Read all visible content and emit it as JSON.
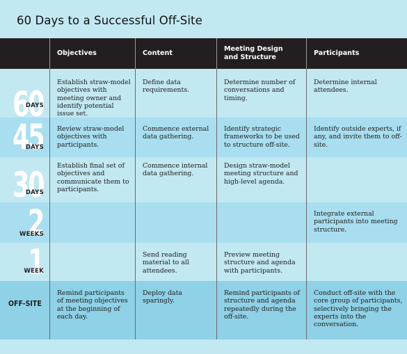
{
  "title": "60 Days to a Successful Off-Site",
  "colors": {
    "header_bg": "#231f20",
    "row_a": "#c2e8f2",
    "row_b": "#a9def0",
    "row_offsite": "#8fd1e6",
    "numeral": "#ffffff"
  },
  "columns": [
    "Objectives",
    "Content",
    "Meeting Design\nand Structure",
    "Participants"
  ],
  "rows": [
    {
      "number": "60",
      "unit": "DAYS",
      "cells": [
        "Establish straw-model objectives with meeting owner and identify potential issue set.",
        "Define data requirements.",
        "Determine number of conversations and timing.",
        "Determine internal attendees."
      ]
    },
    {
      "number": "45",
      "unit": "DAYS",
      "cells": [
        "Review straw-model objectives with participants.",
        "Commence external data gathering.",
        "Identify strategic frameworks to be used to structure off-site.",
        "Identify outside experts, if any, and invite them to off-site."
      ]
    },
    {
      "number": "30",
      "unit": "DAYS",
      "cells": [
        "Establish final set of objectives and communicate them to participants.",
        "Commence internal data gathering.",
        "Design straw-model meeting structure and high-level agenda.",
        ""
      ]
    },
    {
      "number": "2",
      "unit": "WEEKS",
      "cells": [
        "",
        "",
        "",
        "Integrate external participants into meeting structure."
      ]
    },
    {
      "number": "1",
      "unit": "WEEK",
      "cells": [
        "",
        "Send reading material to all attendees.",
        "Preview meeting structure and agenda with participants.",
        ""
      ]
    },
    {
      "label": "OFF-SITE",
      "cells": [
        "Remind participants of meeting objectives at the beginning of each day.",
        "Deploy data sparingly.",
        "Remind participants of structure and agenda repeatedly during the off-site.",
        "Conduct off-site with the core group of participants, selectively bringing the experts into the conversation."
      ]
    }
  ]
}
